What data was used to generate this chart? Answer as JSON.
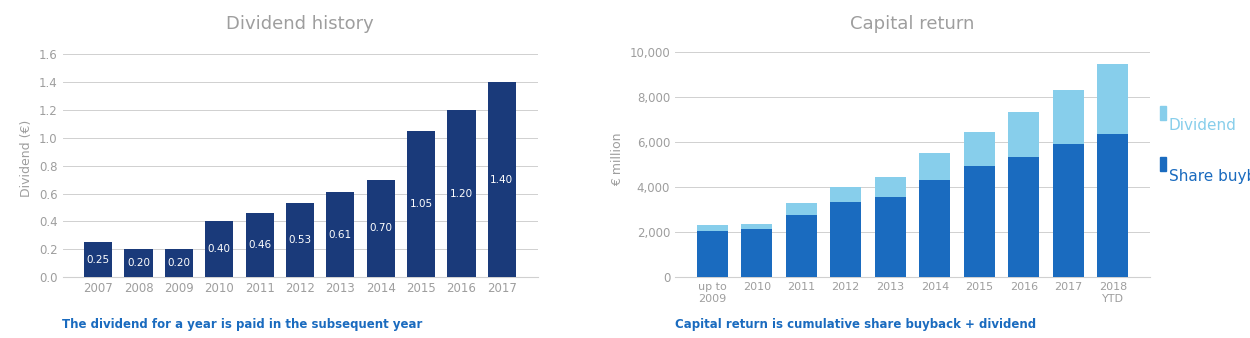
{
  "left_title": "Dividend history",
  "left_ylabel": "Dividend (€)",
  "left_note": "The dividend for a year is paid in the subsequent year",
  "left_categories": [
    "2007",
    "2008",
    "2009",
    "2010",
    "2011",
    "2012",
    "2013",
    "2014",
    "2015",
    "2016",
    "2017"
  ],
  "left_values": [
    0.25,
    0.2,
    0.2,
    0.4,
    0.46,
    0.53,
    0.61,
    0.7,
    1.05,
    1.2,
    1.4
  ],
  "left_bar_color": "#1a3a7a",
  "left_label_color": "#ffffff",
  "left_ylim": [
    0,
    1.7
  ],
  "left_yticks": [
    0.0,
    0.2,
    0.4,
    0.6,
    0.8,
    1.0,
    1.2,
    1.4,
    1.6
  ],
  "right_title": "Capital return",
  "right_ylabel": "€ million",
  "right_note": "Capital return is cumulative share buyback + dividend",
  "right_categories": [
    "up to\n2009",
    "2010",
    "2011",
    "2012",
    "2013",
    "2014",
    "2015",
    "2016",
    "2017",
    "2018\nYTD"
  ],
  "right_buyback": [
    2050,
    2150,
    2750,
    3350,
    3550,
    4300,
    4950,
    5350,
    5900,
    6350
  ],
  "right_dividend": [
    250,
    200,
    550,
    650,
    900,
    1200,
    1500,
    2000,
    2400,
    3100
  ],
  "right_buyback_color": "#1a6bbf",
  "right_dividend_color": "#87ceeb",
  "right_legend_dividend": "Dividend",
  "right_legend_buyback": "Share buyback",
  "right_ylim": [
    0,
    10500
  ],
  "right_yticks": [
    0,
    2000,
    4000,
    6000,
    8000,
    10000
  ],
  "title_color": "#9e9e9e",
  "axis_color": "#9e9e9e",
  "note_color": "#1a6bbf",
  "grid_color": "#d0d0d0",
  "bg_color": "#ffffff"
}
